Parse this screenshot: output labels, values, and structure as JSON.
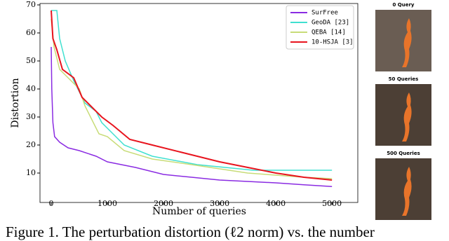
{
  "chart_data": {
    "type": "line",
    "xlabel": "Number of queries",
    "ylabel": "Distortion",
    "xlim": [
      -200,
      5460
    ],
    "ylim": [
      -0.5,
      70.5
    ],
    "xticks": [
      0,
      1000,
      2000,
      3000,
      4000,
      5000
    ],
    "yticks": [
      10,
      20,
      30,
      40,
      50,
      60,
      70
    ],
    "legend": "upper right",
    "series": [
      {
        "name": "SurFree",
        "color": "#8a2be2",
        "x": [
          0,
          10,
          30,
          60,
          150,
          300,
          500,
          800,
          1000,
          1500,
          2000,
          2500,
          3000,
          3500,
          4000,
          4500,
          5000
        ],
        "values": [
          55,
          40,
          28,
          23,
          21,
          19,
          18,
          16,
          14,
          12,
          9.5,
          8.5,
          7.5,
          7,
          6.5,
          5.8,
          5.2
        ]
      },
      {
        "name": "GeoDA [23]",
        "color": "#40e0d0",
        "x": [
          0,
          100,
          150,
          250,
          400,
          600,
          800,
          900,
          1000,
          1300,
          1800,
          2600,
          3600,
          5000
        ],
        "values": [
          68,
          68,
          58,
          50,
          43,
          35,
          32,
          28,
          26,
          20,
          16,
          13,
          11,
          11
        ]
      },
      {
        "name": "QEBA [14]",
        "color": "#c8dc78",
        "x": [
          0,
          50,
          150,
          300,
          500,
          600,
          850,
          1000,
          1300,
          1800,
          2500,
          3500,
          4500,
          5000
        ],
        "values": [
          65,
          55,
          47,
          44,
          40,
          34,
          24,
          23,
          18,
          15,
          13,
          10,
          8.5,
          8
        ]
      },
      {
        "name": "10-HSJA [3]",
        "color": "#e8141e",
        "x": [
          0,
          30,
          100,
          200,
          400,
          550,
          700,
          900,
          1100,
          1400,
          1800,
          2300,
          3000,
          3500,
          4000,
          4500,
          5000
        ],
        "values": [
          68,
          58,
          54,
          47,
          44,
          37,
          34,
          30,
          27,
          22,
          20,
          17.5,
          14,
          12,
          10,
          8.5,
          7.5
        ]
      }
    ]
  },
  "panels": [
    {
      "title": "0 Query"
    },
    {
      "title": "50 Queries"
    },
    {
      "title": "500 Queries"
    }
  ],
  "caption": "Figure 1. The perturbation distortion (ℓ2 norm) vs. the number"
}
